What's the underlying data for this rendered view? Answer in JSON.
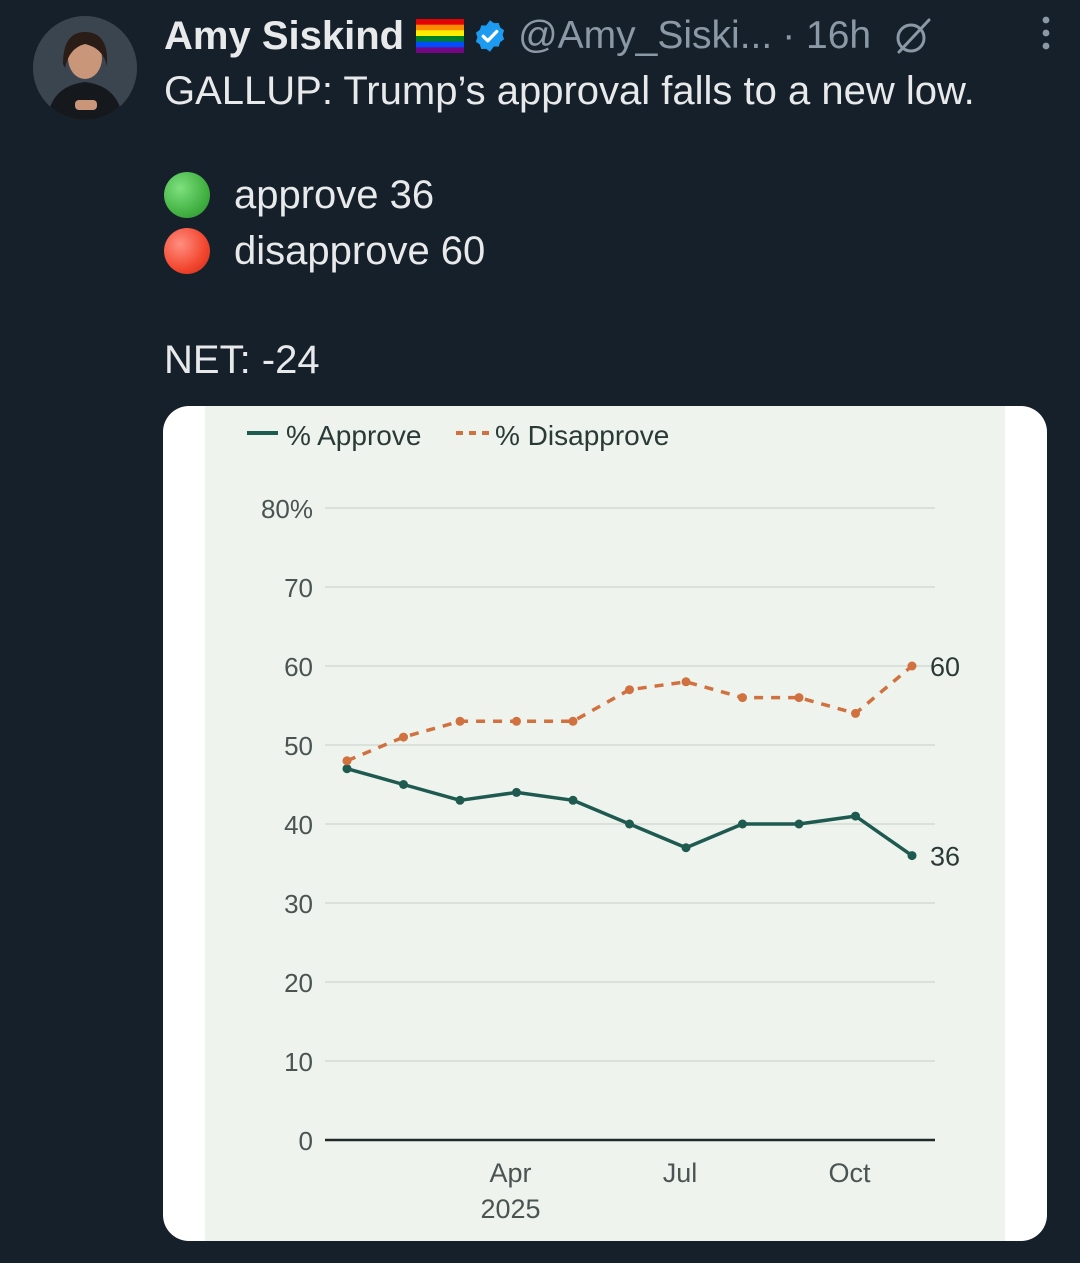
{
  "tweet": {
    "author_name": "Amy Siskind",
    "handle": "@Amy_Siski...",
    "time": "· 16h",
    "text": "GALLUP:  Trump’s approval falls to a new low.",
    "approve_line": "approve 36",
    "disapprove_line": "disapprove 60",
    "net_line": "NET:  -24"
  },
  "icons": {
    "flag": "rainbow-flag-icon",
    "badge": "verified-badge-icon",
    "grok": "grok-icon",
    "more": "more-icon",
    "approve_dot": "green-circle-emoji",
    "disapprove_dot": "red-circle-emoji"
  },
  "colors": {
    "background": "#16202a",
    "approve": "#1e5a4f",
    "disapprove": "#d0713f",
    "verified": "#1d9bf0"
  },
  "chart_data": {
    "type": "line",
    "legend": [
      "% Approve",
      "% Disapprove"
    ],
    "y_ticks": [
      "80%",
      "70",
      "60",
      "50",
      "40",
      "30",
      "20",
      "10",
      "0"
    ],
    "ylim": [
      0,
      80
    ],
    "x_ticks": [
      {
        "label": "Apr",
        "sub": "2025",
        "index": 3
      },
      {
        "label": "Jul",
        "sub": "",
        "index": 6
      },
      {
        "label": "Oct",
        "sub": "",
        "index": 9
      }
    ],
    "series": [
      {
        "name": "% Approve",
        "values": [
          47,
          45,
          43,
          44,
          43,
          40,
          37,
          40,
          40,
          41,
          36
        ],
        "end_label": "36"
      },
      {
        "name": "% Disapprove",
        "values": [
          48,
          51,
          53,
          53,
          53,
          57,
          58,
          56,
          56,
          54,
          60
        ],
        "end_label": "60"
      }
    ]
  }
}
